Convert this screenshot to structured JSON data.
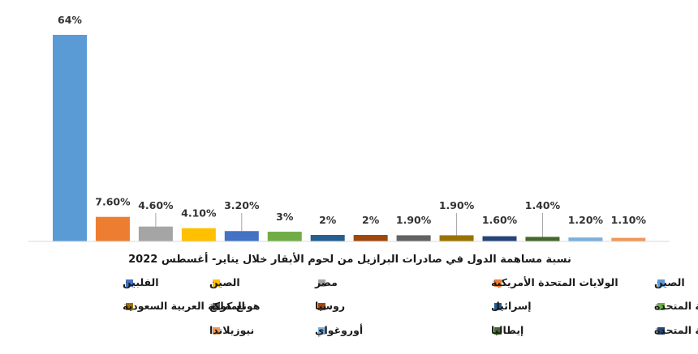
{
  "chart_data": {
    "type": "bar",
    "title": "نسبة مساهمة الدول في صادرات البرازيل من لحوم الأبقار خلال يناير- أغسطس 2022",
    "xlabel": "",
    "ylabel": "",
    "ylim": [
      0,
      64
    ],
    "grid": false,
    "legend": "bottom",
    "series": [
      {
        "name": "الصين",
        "value": 64,
        "label": "64%",
        "color": "#5b9bd5"
      },
      {
        "name": "الولايات المتحدة الأمريكية",
        "value": 7.6,
        "label": "7.60%",
        "color": "#ed7d31"
      },
      {
        "name": "مصر",
        "value": 4.6,
        "label": "4.60%",
        "color": "#a5a5a5"
      },
      {
        "name": "الصين",
        "value": 4.1,
        "label": "4.10%",
        "color": "#ffc000"
      },
      {
        "name": "الفلبين",
        "value": 3.2,
        "label": "3.20%",
        "color": "#4472c4"
      },
      {
        "name": "الإمارات العربية المتحدة",
        "value": 3,
        "label": "3%",
        "color": "#70ad47"
      },
      {
        "name": "إسرائيل",
        "value": 2,
        "label": "2%",
        "color": "#255e91"
      },
      {
        "name": "روسيا",
        "value": 2,
        "label": "2%",
        "color": "#9e480e"
      },
      {
        "name": "هونغ كونغ",
        "value": 1.9,
        "label": "1.90%",
        "color": "#636363"
      },
      {
        "name": "المملكة العربية السعودية",
        "value": 1.9,
        "label": "1.90%",
        "color": "#997300"
      },
      {
        "name": "المملكة المتحدة",
        "value": 1.6,
        "label": "1.60%",
        "color": "#264478"
      },
      {
        "name": "إيطاليا",
        "value": 1.4,
        "label": "1.40%",
        "color": "#43682b"
      },
      {
        "name": "أوروغواي",
        "value": 1.2,
        "label": "1.20%",
        "color": "#7cafdd"
      },
      {
        "name": "نيوزيلاندا",
        "value": 1.1,
        "label": "1.10%",
        "color": "#f1975a"
      }
    ]
  }
}
